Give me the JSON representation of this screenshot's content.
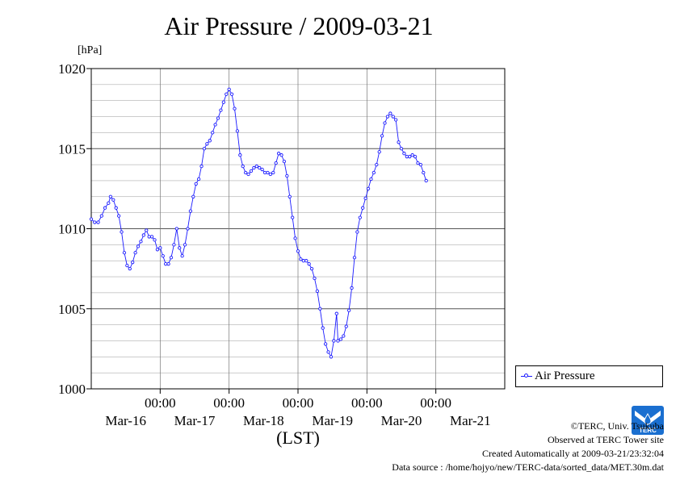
{
  "chart_data": {
    "type": "line",
    "title": "Air Pressure / 2009-03-21",
    "ylabel": "[hPa]",
    "xlabel": "(LST)",
    "ylim": [
      1000,
      1020
    ],
    "yticks": [
      "1000",
      "1005",
      "1010",
      "1015",
      "1020"
    ],
    "xlim": [
      0,
      6
    ],
    "xtick_time_label": "00:00",
    "xtick_dates": [
      "Mar-16",
      "Mar-17",
      "Mar-18",
      "Mar-19",
      "Mar-20",
      "Mar-21"
    ],
    "xtick_positions": [
      1,
      2,
      3,
      4,
      5
    ],
    "grid": true,
    "legend_position": "right",
    "series": [
      {
        "name": "Air Pressure",
        "color": "#1a1aff",
        "points": [
          [
            0.0,
            1010.6
          ],
          [
            0.05,
            1010.4
          ],
          [
            0.1,
            1010.4
          ],
          [
            0.15,
            1010.8
          ],
          [
            0.2,
            1011.3
          ],
          [
            0.25,
            1011.6
          ],
          [
            0.28,
            1012.0
          ],
          [
            0.32,
            1011.8
          ],
          [
            0.36,
            1011.3
          ],
          [
            0.4,
            1010.8
          ],
          [
            0.44,
            1009.8
          ],
          [
            0.48,
            1008.5
          ],
          [
            0.52,
            1007.7
          ],
          [
            0.56,
            1007.5
          ],
          [
            0.6,
            1007.9
          ],
          [
            0.64,
            1008.5
          ],
          [
            0.68,
            1008.9
          ],
          [
            0.72,
            1009.2
          ],
          [
            0.76,
            1009.6
          ],
          [
            0.8,
            1009.9
          ],
          [
            0.84,
            1009.5
          ],
          [
            0.88,
            1009.5
          ],
          [
            0.92,
            1009.3
          ],
          [
            0.96,
            1008.7
          ],
          [
            1.0,
            1008.8
          ],
          [
            1.04,
            1008.3
          ],
          [
            1.08,
            1007.8
          ],
          [
            1.12,
            1007.8
          ],
          [
            1.16,
            1008.2
          ],
          [
            1.2,
            1009.0
          ],
          [
            1.24,
            1010.0
          ],
          [
            1.28,
            1008.8
          ],
          [
            1.32,
            1008.3
          ],
          [
            1.36,
            1009.0
          ],
          [
            1.4,
            1010.0
          ],
          [
            1.44,
            1011.1
          ],
          [
            1.48,
            1012.0
          ],
          [
            1.52,
            1012.8
          ],
          [
            1.56,
            1013.1
          ],
          [
            1.6,
            1013.9
          ],
          [
            1.64,
            1015.0
          ],
          [
            1.68,
            1015.3
          ],
          [
            1.72,
            1015.5
          ],
          [
            1.76,
            1016.0
          ],
          [
            1.8,
            1016.5
          ],
          [
            1.84,
            1016.9
          ],
          [
            1.88,
            1017.4
          ],
          [
            1.92,
            1017.9
          ],
          [
            1.96,
            1018.4
          ],
          [
            2.0,
            1018.7
          ],
          [
            2.04,
            1018.4
          ],
          [
            2.08,
            1017.5
          ],
          [
            2.12,
            1016.1
          ],
          [
            2.16,
            1014.6
          ],
          [
            2.2,
            1013.9
          ],
          [
            2.24,
            1013.5
          ],
          [
            2.28,
            1013.4
          ],
          [
            2.32,
            1013.6
          ],
          [
            2.36,
            1013.8
          ],
          [
            2.4,
            1013.9
          ],
          [
            2.44,
            1013.8
          ],
          [
            2.48,
            1013.7
          ],
          [
            2.52,
            1013.5
          ],
          [
            2.56,
            1013.5
          ],
          [
            2.6,
            1013.4
          ],
          [
            2.64,
            1013.5
          ],
          [
            2.68,
            1014.1
          ],
          [
            2.72,
            1014.7
          ],
          [
            2.76,
            1014.6
          ],
          [
            2.8,
            1014.2
          ],
          [
            2.84,
            1013.3
          ],
          [
            2.88,
            1012.0
          ],
          [
            2.92,
            1010.7
          ],
          [
            2.96,
            1009.4
          ],
          [
            3.0,
            1008.6
          ],
          [
            3.04,
            1008.1
          ],
          [
            3.08,
            1008.0
          ],
          [
            3.12,
            1008.0
          ],
          [
            3.16,
            1007.8
          ],
          [
            3.2,
            1007.5
          ],
          [
            3.24,
            1006.9
          ],
          [
            3.28,
            1006.1
          ],
          [
            3.32,
            1005.0
          ],
          [
            3.36,
            1003.8
          ],
          [
            3.4,
            1002.8
          ],
          [
            3.44,
            1002.3
          ],
          [
            3.48,
            1002.0
          ],
          [
            3.52,
            1003.0
          ],
          [
            3.56,
            1004.7
          ],
          [
            3.58,
            1003.0
          ],
          [
            3.62,
            1003.1
          ],
          [
            3.66,
            1003.3
          ],
          [
            3.7,
            1003.9
          ],
          [
            3.74,
            1004.9
          ],
          [
            3.78,
            1006.3
          ],
          [
            3.82,
            1008.2
          ],
          [
            3.86,
            1009.8
          ],
          [
            3.9,
            1010.7
          ],
          [
            3.94,
            1011.3
          ],
          [
            3.98,
            1011.9
          ],
          [
            4.02,
            1012.5
          ],
          [
            4.06,
            1013.1
          ],
          [
            4.1,
            1013.5
          ],
          [
            4.14,
            1014.0
          ],
          [
            4.18,
            1014.8
          ],
          [
            4.22,
            1015.8
          ],
          [
            4.26,
            1016.6
          ],
          [
            4.3,
            1017.0
          ],
          [
            4.34,
            1017.2
          ],
          [
            4.38,
            1017.0
          ],
          [
            4.42,
            1016.8
          ],
          [
            4.46,
            1015.4
          ],
          [
            4.5,
            1015.0
          ],
          [
            4.54,
            1014.7
          ],
          [
            4.58,
            1014.5
          ],
          [
            4.62,
            1014.5
          ],
          [
            4.66,
            1014.6
          ],
          [
            4.7,
            1014.5
          ],
          [
            4.74,
            1014.1
          ],
          [
            4.78,
            1014.0
          ],
          [
            4.82,
            1013.5
          ],
          [
            4.86,
            1013.0
          ]
        ]
      }
    ]
  },
  "footer": {
    "copyright": "©TERC, Univ. Tsukuba",
    "observed": "Observed at TERC Tower site",
    "created": "Created Automatically at 2009-03-21/23:32:04",
    "source": "Data source : /home/hojyo/new/TERC-data/sorted_data/MET.30m.dat",
    "logo_text": "TERC"
  }
}
